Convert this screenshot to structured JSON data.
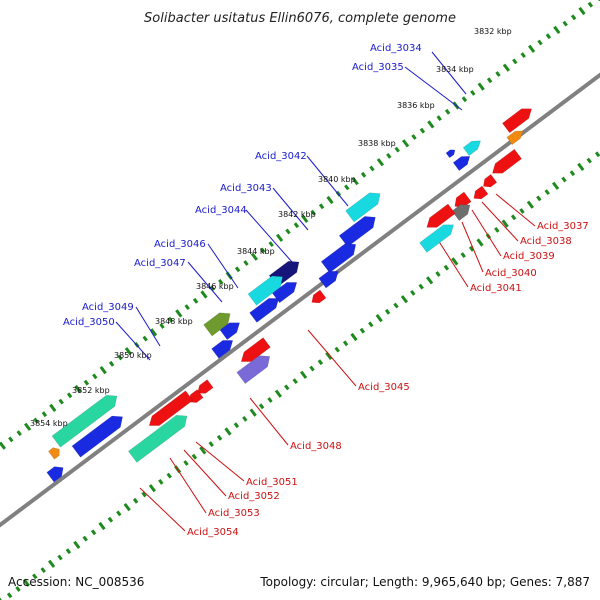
{
  "title": "Solibacter usitatus Ellin6076, complete genome",
  "footer": {
    "accession": "Accession: NC_008536",
    "summary": "Topology: circular; Length: 9,965,640 bp; Genes: 7,887"
  },
  "colors": {
    "backbone": "#808080",
    "tick": "#1e8a1e",
    "forward_label": "#1a1acc",
    "reverse_label": "#cc1111",
    "red": "#ee1111",
    "blue": "#1a2ae0",
    "cyan": "#19d9e0",
    "teal": "#2ad6a0",
    "navy": "#15157a",
    "olive": "#6e9a2e",
    "purple": "#7a6ad8",
    "gray": "#6e6e6e",
    "orange": "#f08a10"
  },
  "kbp_labels": [
    {
      "text": "3832 kbp"
    },
    {
      "text": "3834 kbp"
    },
    {
      "text": "3836 kbp"
    },
    {
      "text": "3838 kbp"
    },
    {
      "text": "3840 kbp"
    },
    {
      "text": "3842 kbp"
    },
    {
      "text": "3844 kbp"
    },
    {
      "text": "3846 kbp"
    },
    {
      "text": "3848 kbp"
    },
    {
      "text": "3850 kbp"
    },
    {
      "text": "3852 kbp"
    },
    {
      "text": "3854 kbp"
    }
  ],
  "gene_labels": [
    {
      "text": "Acid_3034",
      "strand": "forward"
    },
    {
      "text": "Acid_3035",
      "strand": "forward"
    },
    {
      "text": "Acid_3042",
      "strand": "forward"
    },
    {
      "text": "Acid_3043",
      "strand": "forward"
    },
    {
      "text": "Acid_3044",
      "strand": "forward"
    },
    {
      "text": "Acid_3046",
      "strand": "forward"
    },
    {
      "text": "Acid_3047",
      "strand": "forward"
    },
    {
      "text": "Acid_3049",
      "strand": "forward"
    },
    {
      "text": "Acid_3050",
      "strand": "forward"
    },
    {
      "text": "Acid_3037",
      "strand": "reverse"
    },
    {
      "text": "Acid_3038",
      "strand": "reverse"
    },
    {
      "text": "Acid_3039",
      "strand": "reverse"
    },
    {
      "text": "Acid_3040",
      "strand": "reverse"
    },
    {
      "text": "Acid_3041",
      "strand": "reverse"
    },
    {
      "text": "Acid_3045",
      "strand": "reverse"
    },
    {
      "text": "Acid_3048",
      "strand": "reverse"
    },
    {
      "text": "Acid_3051",
      "strand": "reverse"
    },
    {
      "text": "Acid_3052",
      "strand": "reverse"
    },
    {
      "text": "Acid_3053",
      "strand": "reverse"
    },
    {
      "text": "Acid_3054",
      "strand": "reverse"
    }
  ]
}
